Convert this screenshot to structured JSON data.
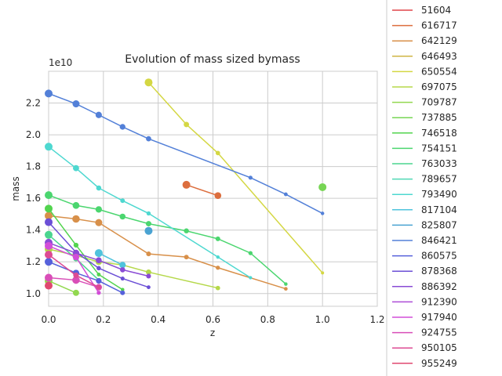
{
  "chart_data": {
    "type": "line",
    "title": "Evolution of mass sized bymass",
    "xlabel": "z",
    "ylabel": "mass",
    "y_multiplier": "1e10",
    "xlim": [
      0,
      1.2
    ],
    "ylim": [
      0.92,
      2.4
    ],
    "x_ticks": [
      0,
      0.2,
      0.4,
      0.6,
      0.8,
      1.0,
      1.2
    ],
    "x_tick_labels": [
      "0.0",
      "0.2",
      "0.4",
      "0.6",
      "0.8",
      "1.0",
      "1.2"
    ],
    "y_ticks": [
      1.0,
      1.2,
      1.4,
      1.6,
      1.8,
      2.0,
      2.2
    ],
    "y_tick_labels": [
      "1.0",
      "1.2",
      "1.4",
      "1.6",
      "1.8",
      "2.0",
      "2.2"
    ],
    "grid": true,
    "legend_position": "outside right",
    "legend_title": "",
    "series": [
      {
        "name": "51604",
        "color": "#e0454a",
        "points": []
      },
      {
        "name": "616717",
        "color": "#dc6e3e",
        "points": [
          [
            0.503,
            1.685
          ],
          [
            0.618,
            1.617
          ]
        ]
      },
      {
        "name": "642129",
        "color": "#d8904a",
        "points": [
          [
            0.0,
            1.49
          ],
          [
            0.1,
            1.47
          ],
          [
            0.183,
            1.447
          ],
          [
            0.365,
            1.25
          ],
          [
            0.503,
            1.23
          ],
          [
            0.618,
            1.163
          ],
          [
            0.866,
            1.03
          ]
        ]
      },
      {
        "name": "646493",
        "color": "#cfb443",
        "points": []
      },
      {
        "name": "650554",
        "color": "#d4d743",
        "points": [
          [
            0.365,
            2.33
          ],
          [
            0.503,
            2.065
          ],
          [
            0.618,
            1.885
          ],
          [
            1.0,
            1.13
          ]
        ]
      },
      {
        "name": "697075",
        "color": "#b5d84a",
        "points": [
          [
            0.0,
            1.28
          ],
          [
            0.1,
            1.24
          ],
          [
            0.183,
            1.2
          ],
          [
            0.27,
            1.18
          ],
          [
            0.365,
            1.135
          ],
          [
            0.618,
            1.035
          ]
        ]
      },
      {
        "name": "709787",
        "color": "#92d84f",
        "points": [
          [
            0.0,
            1.08
          ],
          [
            0.1,
            1.005
          ]
        ]
      },
      {
        "name": "737885",
        "color": "#77d554",
        "points": [
          [
            1.0,
            1.67
          ]
        ]
      },
      {
        "name": "746518",
        "color": "#52d44e",
        "points": [
          [
            0.0,
            1.535
          ],
          [
            0.1,
            1.305
          ],
          [
            0.183,
            1.12
          ],
          [
            0.27,
            1.025
          ]
        ]
      },
      {
        "name": "754151",
        "color": "#4bd66f",
        "points": [
          [
            0.0,
            1.62
          ],
          [
            0.1,
            1.555
          ],
          [
            0.183,
            1.53
          ],
          [
            0.27,
            1.485
          ],
          [
            0.365,
            1.44
          ],
          [
            0.503,
            1.395
          ],
          [
            0.618,
            1.345
          ],
          [
            0.737,
            1.255
          ],
          [
            0.866,
            1.06
          ]
        ]
      },
      {
        "name": "763033",
        "color": "#4bd58f",
        "points": [
          [
            0.0,
            1.37
          ],
          [
            0.1,
            1.22
          ],
          [
            0.183,
            1.085
          ]
        ]
      },
      {
        "name": "789657",
        "color": "#4fd8b4",
        "points": []
      },
      {
        "name": "793490",
        "color": "#4ed8d0",
        "points": [
          [
            0.0,
            1.925
          ],
          [
            0.1,
            1.79
          ],
          [
            0.183,
            1.665
          ],
          [
            0.27,
            1.585
          ],
          [
            0.365,
            1.505
          ],
          [
            0.618,
            1.23
          ],
          [
            0.737,
            1.1
          ]
        ]
      },
      {
        "name": "817104",
        "color": "#4fc3dc",
        "points": [
          [
            0.183,
            1.255
          ],
          [
            0.27,
            1.18
          ]
        ]
      },
      {
        "name": "825807",
        "color": "#4aa3d2",
        "points": [
          [
            0.365,
            1.395
          ]
        ]
      },
      {
        "name": "846421",
        "color": "#5380d8",
        "points": [
          [
            0.0,
            2.26
          ],
          [
            0.1,
            2.195
          ],
          [
            0.183,
            2.125
          ],
          [
            0.27,
            2.05
          ],
          [
            0.365,
            1.975
          ],
          [
            0.737,
            1.73
          ],
          [
            0.866,
            1.625
          ],
          [
            1.0,
            1.505
          ]
        ]
      },
      {
        "name": "860575",
        "color": "#5661db",
        "points": [
          [
            0.0,
            1.2
          ],
          [
            0.1,
            1.13
          ],
          [
            0.183,
            1.08
          ],
          [
            0.27,
            1.005
          ]
        ]
      },
      {
        "name": "878368",
        "color": "#6b4fd6",
        "points": [
          [
            0.0,
            1.45
          ],
          [
            0.1,
            1.26
          ],
          [
            0.183,
            1.16
          ],
          [
            0.27,
            1.095
          ],
          [
            0.365,
            1.04
          ]
        ]
      },
      {
        "name": "886392",
        "color": "#8a4bd5",
        "points": [
          [
            0.0,
            1.32
          ],
          [
            0.1,
            1.255
          ],
          [
            0.183,
            1.21
          ],
          [
            0.27,
            1.15
          ],
          [
            0.365,
            1.11
          ]
        ]
      },
      {
        "name": "912390",
        "color": "#ad4dd6",
        "points": []
      },
      {
        "name": "917940",
        "color": "#d24ed8",
        "points": [
          [
            0.0,
            1.3
          ],
          [
            0.1,
            1.23
          ],
          [
            0.183,
            1.005
          ]
        ]
      },
      {
        "name": "924755",
        "color": "#d94eb8",
        "points": [
          [
            0.0,
            1.1
          ],
          [
            0.1,
            1.085
          ],
          [
            0.183,
            1.04
          ]
        ]
      },
      {
        "name": "950105",
        "color": "#dd4b93",
        "points": [
          [
            0.0,
            1.245
          ],
          [
            0.1,
            1.115
          ],
          [
            0.183,
            1.04
          ]
        ]
      },
      {
        "name": "955249",
        "color": "#e04870",
        "points": [
          [
            0.0,
            1.05
          ]
        ]
      }
    ]
  }
}
